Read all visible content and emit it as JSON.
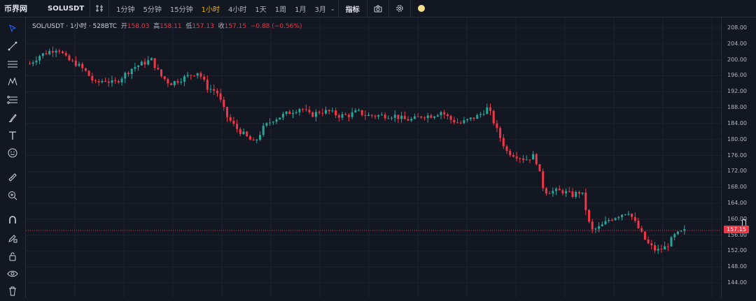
{
  "topbar": {
    "logo": "币界网",
    "symbol": "SOLUSDT",
    "timeframes": [
      {
        "label": "1分钟",
        "active": false
      },
      {
        "label": "5分钟",
        "active": false
      },
      {
        "label": "15分钟",
        "active": false
      },
      {
        "label": "1小时",
        "active": true
      },
      {
        "label": "4小时",
        "active": false
      },
      {
        "label": "1天",
        "active": false
      },
      {
        "label": "1周",
        "active": false
      },
      {
        "label": "1月",
        "active": false
      },
      {
        "label": "3月",
        "active": false
      }
    ],
    "indicators_label": "指标"
  },
  "legend": {
    "title": "SOL/USDT · 1小时 · 528BTC",
    "open_label": "开",
    "open": "158.03",
    "high_label": "高",
    "high": "158.11",
    "low_label": "低",
    "low": "157.13",
    "close_label": "收",
    "close": "157.15",
    "change": "−0.88 (−0.56%)"
  },
  "sidebar_tools": [
    "cursor-icon",
    "trend-line-icon",
    "horizontal-lines-icon",
    "pattern-icon",
    "fib-icon",
    "brush-icon",
    "text-icon",
    "emoji-icon",
    "ruler-icon",
    "zoom-icon",
    "magnet-icon",
    "pencil-lock-icon",
    "lock-icon",
    "eye-icon",
    "trash-icon"
  ],
  "colors": {
    "up": "#26a69a",
    "down": "#f23645",
    "bg": "#131722",
    "grid": "#1e222d"
  },
  "chart_data": {
    "type": "candlestick",
    "ylim": [
      142,
      210
    ],
    "y_ticks": [
      "208.00",
      "204.00",
      "200.00",
      "196.00",
      "192.00",
      "188.00",
      "184.00",
      "180.00",
      "176.00",
      "172.00",
      "168.00",
      "164.00",
      "160.00",
      "156.00",
      "152.00",
      "148.00",
      "144.00"
    ],
    "last_price": "157.15",
    "close_path": [
      199,
      201,
      202,
      203,
      200,
      199,
      197,
      194,
      195,
      194,
      196,
      198,
      199,
      200,
      196,
      194,
      195,
      196,
      197,
      193,
      192,
      186,
      183,
      181,
      179,
      183,
      185,
      186,
      187,
      188,
      186,
      187,
      187,
      186,
      186,
      187,
      186,
      186,
      186,
      186,
      185,
      185,
      186,
      186,
      187,
      185,
      184,
      185,
      186,
      188,
      182,
      177,
      176,
      175,
      176,
      167,
      167,
      167,
      166,
      167,
      157,
      158,
      160,
      161,
      162,
      158,
      154,
      152,
      153,
      156,
      157
    ]
  }
}
